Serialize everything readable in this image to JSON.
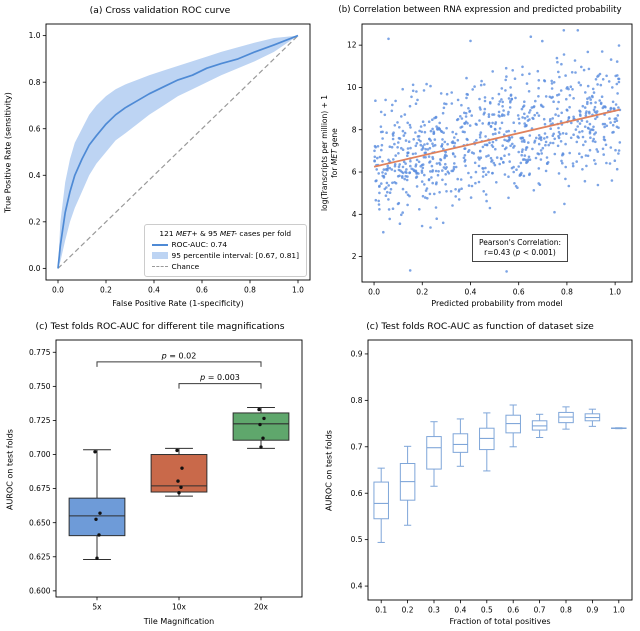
{
  "chart_data": [
    {
      "id": "roc_cross_validation",
      "type": "line",
      "title": "(a) Cross validation ROC curve",
      "xlabel": "False Positive Rate (1-specificity)",
      "ylabel": "True Positive Rate (sensitivity)",
      "xlim": [
        -0.05,
        1.05
      ],
      "ylim": [
        -0.05,
        1.05
      ],
      "xtick_vals": [
        0.0,
        0.2,
        0.4,
        0.6,
        0.8,
        1.0
      ],
      "xtick_labels": [
        "0.0",
        "0.2",
        "0.4",
        "0.6",
        "0.8",
        "1.0"
      ],
      "ytick_vals": [
        0.0,
        0.2,
        0.4,
        0.6,
        0.8,
        1.0
      ],
      "ytick_labels": [
        "0.0",
        "0.2",
        "0.4",
        "0.6",
        "0.8",
        "1.0"
      ],
      "roc_auc": 0.74,
      "percentile_interval": [
        0.67,
        0.81
      ],
      "roc": {
        "x": [
          0,
          0.01,
          0.03,
          0.05,
          0.07,
          0.1,
          0.13,
          0.16,
          0.2,
          0.24,
          0.28,
          0.33,
          0.38,
          0.44,
          0.5,
          0.56,
          0.62,
          0.68,
          0.75,
          0.82,
          0.9,
          1.0
        ],
        "mean": [
          0,
          0.1,
          0.24,
          0.33,
          0.4,
          0.47,
          0.53,
          0.57,
          0.62,
          0.66,
          0.69,
          0.72,
          0.75,
          0.78,
          0.81,
          0.83,
          0.86,
          0.88,
          0.9,
          0.93,
          0.96,
          1.0
        ],
        "upper": [
          0,
          0.2,
          0.37,
          0.47,
          0.54,
          0.6,
          0.66,
          0.7,
          0.74,
          0.77,
          0.79,
          0.81,
          0.83,
          0.85,
          0.87,
          0.89,
          0.91,
          0.93,
          0.95,
          0.97,
          0.99,
          1.0
        ],
        "lower": [
          0,
          0.03,
          0.12,
          0.2,
          0.26,
          0.33,
          0.4,
          0.45,
          0.5,
          0.55,
          0.58,
          0.62,
          0.66,
          0.7,
          0.74,
          0.77,
          0.8,
          0.83,
          0.86,
          0.89,
          0.93,
          1.0
        ]
      },
      "legend": {
        "header_parts": [
          {
            "t": "121 "
          },
          {
            "t": "MET+"
          },
          {
            "t": " & 95 "
          },
          {
            "t": "MET-"
          },
          {
            "t": " cases per fold"
          }
        ],
        "items": [
          {
            "label": "ROC-AUC: 0.74",
            "swatch": "line"
          },
          {
            "label": "95 percentile interval: [0.67, 0.81]",
            "swatch": "band"
          },
          {
            "label": "Chance",
            "swatch": "dashed"
          }
        ]
      },
      "colors": {
        "line": "#4e8ad5",
        "band": "#bdd4f3",
        "chance": "#999999"
      }
    },
    {
      "id": "rna_expression_scatter",
      "type": "scatter",
      "title": "(b) Correlation between RNA expression and predicted probability",
      "xlabel": "Predicted probability from model",
      "ylabel_line1": "log(Transcripts per million) + 1",
      "ylabel_line2_parts": [
        {
          "t": "for "
        },
        {
          "t": "MET"
        },
        {
          "t": " gene"
        }
      ],
      "xlim": [
        -0.05,
        1.07
      ],
      "ylim": [
        0.8,
        13.0
      ],
      "xtick_vals": [
        0.0,
        0.2,
        0.4,
        0.6,
        0.8,
        1.0
      ],
      "xtick_labels": [
        "0.0",
        "0.2",
        "0.4",
        "0.6",
        "0.8",
        "1.0"
      ],
      "ytick_vals": [
        2,
        4,
        6,
        8,
        10,
        12
      ],
      "ytick_labels": [
        "2",
        "4",
        "6",
        "8",
        "10",
        "12"
      ],
      "pearson_r": 0.43,
      "points_spec": {
        "n": 900,
        "seed": 42,
        "x_max": 1.02,
        "intercept": 6.3,
        "slope": 2.6,
        "noise_sd": 1.42,
        "y_clip": [
          1.0,
          12.7
        ],
        "extra_points": [
          [
            0.06,
            12.3
          ],
          [
            0.4,
            12.2
          ],
          [
            0.65,
            12.4
          ],
          [
            0.15,
            1.35
          ],
          [
            0.55,
            1.3
          ]
        ]
      },
      "regression": {
        "x1": 0.0,
        "y1": 6.25,
        "x2": 1.02,
        "y2": 8.95
      },
      "annotation_line1": "Pearson's Correlation:",
      "annotation_line2_parts": [
        {
          "t": "r=0.43 ("
        },
        {
          "t": "p"
        },
        {
          "t": " < 0.001)"
        }
      ],
      "colors": {
        "point": "#5b8dde",
        "line": "#e0815c"
      }
    },
    {
      "id": "magnification_boxplot",
      "type": "box",
      "title": "(c) Test folds ROC-AUC for different tile magnifications",
      "xlabel": "Tile Magnification",
      "ylabel": "AUROC on test folds",
      "categories": [
        "5x",
        "10x",
        "20x"
      ],
      "ylim": [
        0.5955,
        0.784
      ],
      "ytick_vals": [
        0.6,
        0.625,
        0.65,
        0.675,
        0.7,
        0.725,
        0.75,
        0.775
      ],
      "ytick_labels": [
        "0.600",
        "0.625",
        "0.650",
        "0.675",
        "0.700",
        "0.725",
        "0.750",
        "0.775"
      ],
      "boxes": [
        {
          "category": "5x",
          "whislo": 0.623,
          "q1": 0.6405,
          "med": 0.655,
          "q3": 0.668,
          "whishi": 0.7035,
          "points": [
            0.702,
            0.657,
            0.6525,
            0.641,
            0.624
          ],
          "fill": "#6e9bd8"
        },
        {
          "category": "10x",
          "whislo": 0.6695,
          "q1": 0.6725,
          "med": 0.677,
          "q3": 0.7,
          "whishi": 0.7045,
          "points": [
            0.703,
            0.69,
            0.6805,
            0.676,
            0.672
          ],
          "fill": "#c9694a"
        },
        {
          "category": "20x",
          "whislo": 0.7045,
          "q1": 0.7105,
          "med": 0.7225,
          "q3": 0.7305,
          "whishi": 0.7345,
          "points": [
            0.733,
            0.7265,
            0.722,
            0.712,
            0.7055
          ],
          "fill": "#5fa76c"
        }
      ],
      "significance": [
        {
          "from": 0,
          "to": 2,
          "y": 0.768,
          "p_italic": "p",
          "p_rest": " = 0.02"
        },
        {
          "from": 1,
          "to": 2,
          "y": 0.752,
          "p_italic": "p",
          "p_rest": " = 0.003"
        }
      ],
      "edge_color": "#2f2f2f",
      "median_color": "#2f2f2f",
      "point_color": "#111111"
    },
    {
      "id": "dataset_size_boxplot",
      "type": "box",
      "title": "(c) Test folds ROC-AUC as function of dataset size",
      "xlabel": "Fraction of total positives",
      "ylabel": "AUROC on test folds",
      "categories": [
        "0.1",
        "0.2",
        "0.3",
        "0.4",
        "0.5",
        "0.6",
        "0.7",
        "0.8",
        "0.9",
        "1.0"
      ],
      "ylim": [
        0.37,
        0.93
      ],
      "ytick_vals": [
        0.4,
        0.5,
        0.6,
        0.7,
        0.8,
        0.9
      ],
      "ytick_labels": [
        "0.4",
        "0.5",
        "0.6",
        "0.7",
        "0.8",
        "0.9"
      ],
      "boxes": [
        {
          "category": "0.1",
          "whislo": 0.494,
          "q1": 0.545,
          "med": 0.578,
          "q3": 0.624,
          "whishi": 0.654,
          "fill": "none"
        },
        {
          "category": "0.2",
          "whislo": 0.531,
          "q1": 0.585,
          "med": 0.625,
          "q3": 0.664,
          "whishi": 0.701,
          "fill": "none"
        },
        {
          "category": "0.3",
          "whislo": 0.615,
          "q1": 0.652,
          "med": 0.698,
          "q3": 0.722,
          "whishi": 0.754,
          "fill": "none"
        },
        {
          "category": "0.4",
          "whislo": 0.658,
          "q1": 0.688,
          "med": 0.705,
          "q3": 0.728,
          "whishi": 0.76,
          "fill": "none"
        },
        {
          "category": "0.5",
          "whislo": 0.648,
          "q1": 0.694,
          "med": 0.718,
          "q3": 0.74,
          "whishi": 0.773,
          "fill": "none"
        },
        {
          "category": "0.6",
          "whislo": 0.7,
          "q1": 0.73,
          "med": 0.75,
          "q3": 0.768,
          "whishi": 0.79,
          "fill": "none"
        },
        {
          "category": "0.7",
          "whislo": 0.72,
          "q1": 0.736,
          "med": 0.745,
          "q3": 0.756,
          "whishi": 0.77,
          "fill": "none"
        },
        {
          "category": "0.8",
          "whislo": 0.738,
          "q1": 0.752,
          "med": 0.764,
          "q3": 0.774,
          "whishi": 0.786,
          "fill": "none"
        },
        {
          "category": "0.9",
          "whislo": 0.744,
          "q1": 0.756,
          "med": 0.763,
          "q3": 0.771,
          "whishi": 0.781,
          "fill": "none"
        },
        {
          "category": "1.0",
          "whislo": 0.739,
          "q1": 0.7395,
          "med": 0.74,
          "q3": 0.7405,
          "whishi": 0.741,
          "fill": "none"
        }
      ],
      "significance": [],
      "edge_color": "#7fa6d9",
      "median_color": "#7fa6d9",
      "point_color": "#111111"
    }
  ]
}
